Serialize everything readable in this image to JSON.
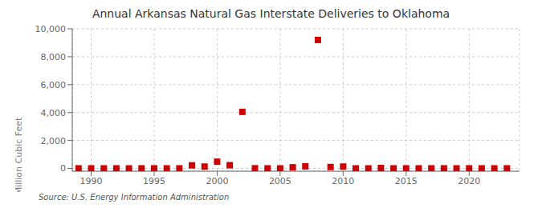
{
  "chart_data": {
    "type": "scatter",
    "title": "Annual Arkansas Natural Gas Interstate Deliveries to Oklahoma",
    "y_label": "Million Cubic Feet",
    "annotations": [
      "Source: U.S. Energy Information Administration"
    ],
    "x": [
      1989,
      1990,
      1991,
      1992,
      1993,
      1994,
      1995,
      1996,
      1997,
      1998,
      1999,
      2000,
      2001,
      2002,
      2003,
      2004,
      2005,
      2006,
      2007,
      2008,
      2009,
      2010,
      2011,
      2012,
      2013,
      2014,
      2015,
      2016,
      2017,
      2018,
      2019,
      2020,
      2021,
      2022,
      2023
    ],
    "values": [
      3,
      3,
      3,
      3,
      3,
      3,
      3,
      3,
      3,
      220,
      130,
      480,
      230,
      4050,
      10,
      3,
      3,
      80,
      150,
      9200,
      100,
      130,
      3,
      3,
      30,
      3,
      3,
      3,
      3,
      3,
      3,
      3,
      3,
      3,
      3
    ],
    "color": "#cc0000",
    "marker": "square",
    "xlim": [
      1988.5,
      2024
    ],
    "xticks": [
      1990,
      1995,
      2000,
      2005,
      2010,
      2015,
      2020
    ],
    "ylim": [
      -200,
      10000
    ],
    "yticks": [
      0,
      {
        "value": 2000,
        "label": "2,000"
      },
      {
        "value": 4000,
        "label": "4,000"
      },
      {
        "value": 6000,
        "label": "6,000"
      },
      {
        "value": 8000,
        "label": "8,000"
      },
      {
        "value": 10000,
        "label": "10,000"
      }
    ],
    "grid": true
  }
}
